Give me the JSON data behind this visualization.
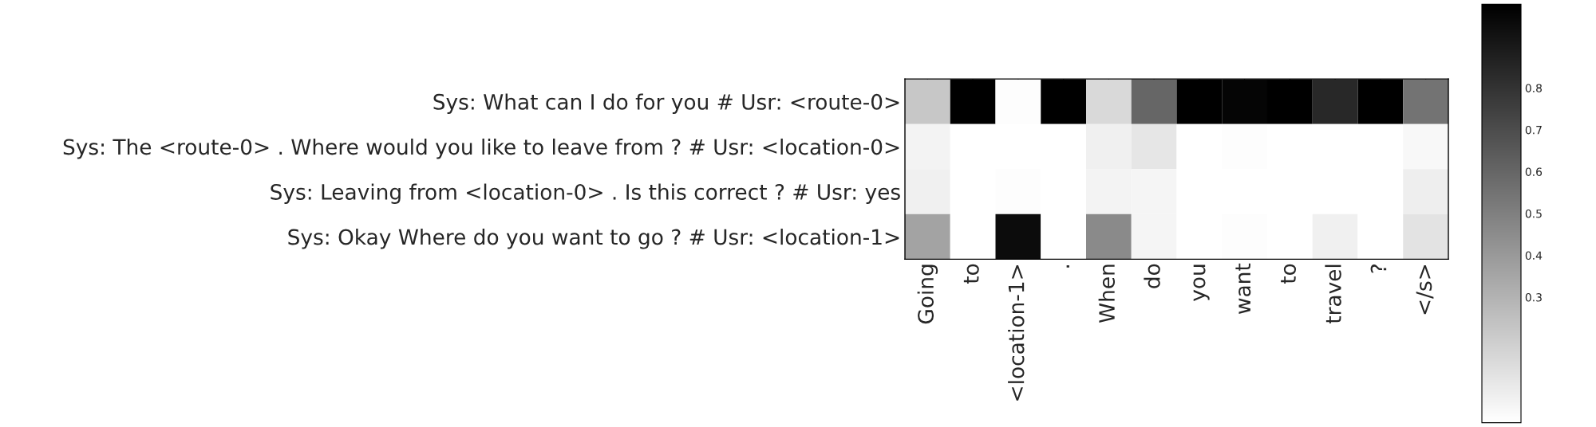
{
  "chart_data": {
    "type": "heatmap",
    "categories": [
      "Going",
      "to",
      "<location-1>",
      ".",
      "When",
      "do",
      "you",
      "want",
      "to",
      "travel",
      "?",
      "</s>"
    ],
    "y_categories": [
      "Sys: What can I do for you # Usr: <route-0>",
      "Sys: The <route-0> . Where would you like to leave from ? # Usr: <location-0>",
      "Sys: Leaving from <location-0> . Is this correct ? # Usr: yes",
      "Sys: Okay Where do you want to go ? # Usr: <location-1>"
    ],
    "cells": [
      [
        0.22,
        1.0,
        0.01,
        1.0,
        0.15,
        0.6,
        1.0,
        0.98,
        1.0,
        0.84,
        1.0,
        0.55
      ],
      [
        0.05,
        0.0,
        0.0,
        0.0,
        0.06,
        0.1,
        0.0,
        0.01,
        0.0,
        0.0,
        0.0,
        0.03
      ],
      [
        0.06,
        0.0,
        0.01,
        0.0,
        0.05,
        0.04,
        0.0,
        0.0,
        0.0,
        0.0,
        0.0,
        0.07
      ],
      [
        0.36,
        0.0,
        0.95,
        0.0,
        0.46,
        0.04,
        0.0,
        0.01,
        0.0,
        0.06,
        0.0,
        0.11
      ]
    ],
    "clim": [
      0,
      1
    ],
    "cticks": [
      0.3,
      0.4,
      0.5,
      0.6,
      0.7,
      0.8
    ]
  }
}
